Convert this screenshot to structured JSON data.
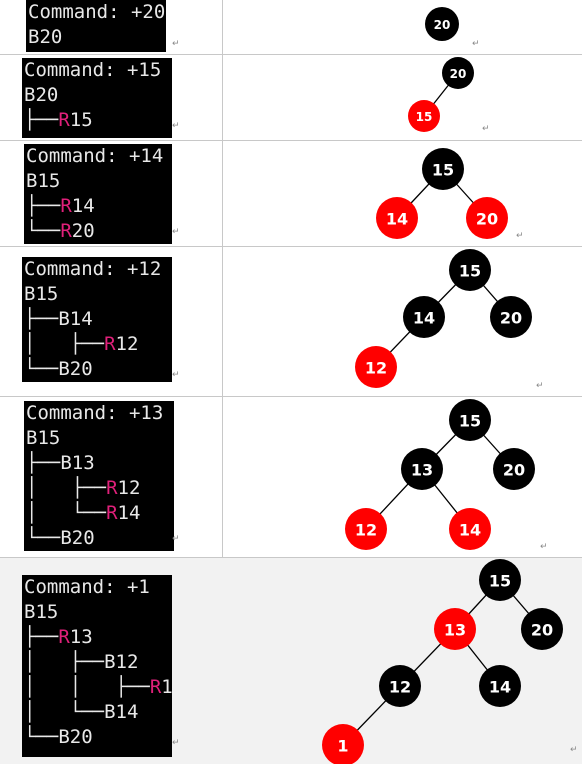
{
  "steps": [
    {
      "command": "Command: +20",
      "tree_lines": [
        [
          [
            "",
            "B20"
          ]
        ]
      ],
      "nodes": [
        {
          "key": "20",
          "color": "black"
        }
      ]
    },
    {
      "command": "Command: +15",
      "tree_lines": [
        [
          [
            "",
            "B20"
          ]
        ],
        [
          [
            "├──",
            ""
          ],
          [
            "R",
            "r"
          ],
          [
            "15",
            ""
          ]
        ]
      ],
      "nodes": [
        {
          "key": "20",
          "color": "black"
        },
        {
          "key": "15",
          "color": "red"
        }
      ]
    },
    {
      "command": "Command: +14",
      "tree_lines": [
        [
          [
            "",
            "B15"
          ]
        ],
        [
          [
            "├──",
            ""
          ],
          [
            "R",
            "r"
          ],
          [
            "14",
            ""
          ]
        ],
        [
          [
            "└──",
            ""
          ],
          [
            "R",
            "r"
          ],
          [
            "20",
            ""
          ]
        ]
      ],
      "nodes": [
        {
          "key": "15",
          "color": "black"
        },
        {
          "key": "14",
          "color": "red"
        },
        {
          "key": "20",
          "color": "red"
        }
      ]
    },
    {
      "command": "Command: +12",
      "tree_lines": [
        [
          [
            "",
            "B15"
          ]
        ],
        [
          [
            "├──B14",
            ""
          ]
        ],
        [
          [
            "│   ├──",
            ""
          ],
          [
            "R",
            "r"
          ],
          [
            "12",
            ""
          ]
        ],
        [
          [
            "└──B20",
            ""
          ]
        ]
      ],
      "nodes": [
        {
          "key": "15",
          "color": "black"
        },
        {
          "key": "14",
          "color": "black"
        },
        {
          "key": "20",
          "color": "black"
        },
        {
          "key": "12",
          "color": "red"
        }
      ]
    },
    {
      "command": "Command: +13",
      "tree_lines": [
        [
          [
            "",
            "B15"
          ]
        ],
        [
          [
            "├──B13",
            ""
          ]
        ],
        [
          [
            "│   ├──",
            ""
          ],
          [
            "R",
            "r"
          ],
          [
            "12",
            ""
          ]
        ],
        [
          [
            "│   └──",
            ""
          ],
          [
            "R",
            "r"
          ],
          [
            "14",
            ""
          ]
        ],
        [
          [
            "└──B20",
            ""
          ]
        ]
      ],
      "nodes": [
        {
          "key": "15",
          "color": "black"
        },
        {
          "key": "13",
          "color": "black"
        },
        {
          "key": "20",
          "color": "black"
        },
        {
          "key": "12",
          "color": "red"
        },
        {
          "key": "14",
          "color": "red"
        }
      ]
    },
    {
      "command": "Command: +1",
      "tree_lines": [
        [
          [
            "",
            "B15"
          ]
        ],
        [
          [
            "├──",
            ""
          ],
          [
            "R",
            "r"
          ],
          [
            "13",
            ""
          ]
        ],
        [
          [
            "│   ├──B12",
            ""
          ]
        ],
        [
          [
            "│   │   ├──",
            ""
          ],
          [
            "R",
            "r"
          ],
          [
            "1",
            ""
          ]
        ],
        [
          [
            "│   └──B14",
            ""
          ]
        ],
        [
          [
            "└──B20",
            ""
          ]
        ]
      ],
      "nodes": [
        {
          "key": "15",
          "color": "black"
        },
        {
          "key": "13",
          "color": "red"
        },
        {
          "key": "20",
          "color": "black"
        },
        {
          "key": "12",
          "color": "black"
        },
        {
          "key": "14",
          "color": "black"
        },
        {
          "key": "1",
          "color": "red"
        }
      ]
    }
  ],
  "colors": {
    "black_node": "#000000",
    "red_node": "#ff0000",
    "red_text": "#e0207a",
    "terminal_bg": "#000000",
    "last_row_bg": "#f2f2f2"
  }
}
